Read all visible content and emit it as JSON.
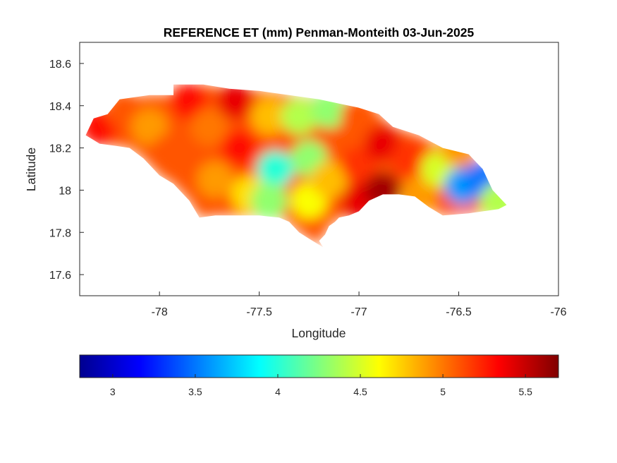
{
  "chart_data": {
    "type": "heatmap",
    "title": "REFERENCE ET (mm) Penman-Monteith 03-Jun-2025",
    "xlabel": "Longitude",
    "ylabel": "Latitude",
    "xlim": [
      -78.4,
      -76
    ],
    "ylim": [
      17.5,
      18.7
    ],
    "xticks": [
      -78,
      -77.5,
      -77,
      -76.5,
      -76
    ],
    "xtick_labels": [
      "-78",
      "-77.5",
      "-77",
      "-76.5",
      "-76"
    ],
    "yticks": [
      17.6,
      17.8,
      18,
      18.2,
      18.4,
      18.6
    ],
    "ytick_labels": [
      "17.6",
      "17.8",
      "18",
      "18.2",
      "18.4",
      "18.6"
    ],
    "grid": false,
    "colormap": "jet",
    "colorbar": {
      "orientation": "horizontal",
      "placement": "bottom",
      "range": [
        2.8,
        5.7
      ],
      "ticks": [
        3,
        3.5,
        4,
        4.5,
        5,
        5.5
      ],
      "tick_labels": [
        "3",
        "3.5",
        "4",
        "4.5",
        "5",
        "5.5"
      ]
    },
    "outline": [
      [
        -78.37,
        18.26
      ],
      [
        -78.33,
        18.34
      ],
      [
        -78.26,
        18.36
      ],
      [
        -78.2,
        18.43
      ],
      [
        -78.05,
        18.45
      ],
      [
        -77.93,
        18.45
      ],
      [
        -77.93,
        18.5
      ],
      [
        -77.78,
        18.5
      ],
      [
        -77.65,
        18.48
      ],
      [
        -77.5,
        18.47
      ],
      [
        -77.35,
        18.45
      ],
      [
        -77.2,
        18.43
      ],
      [
        -77.1,
        18.41
      ],
      [
        -77.0,
        18.39
      ],
      [
        -76.9,
        18.36
      ],
      [
        -76.83,
        18.3
      ],
      [
        -76.7,
        18.26
      ],
      [
        -76.58,
        18.2
      ],
      [
        -76.45,
        18.17
      ],
      [
        -76.38,
        18.1
      ],
      [
        -76.33,
        18.0
      ],
      [
        -76.26,
        17.93
      ],
      [
        -76.3,
        17.91
      ],
      [
        -76.45,
        17.89
      ],
      [
        -76.58,
        17.88
      ],
      [
        -76.65,
        17.92
      ],
      [
        -76.72,
        17.97
      ],
      [
        -76.8,
        17.98
      ],
      [
        -76.88,
        17.98
      ],
      [
        -76.95,
        17.95
      ],
      [
        -77.0,
        17.9
      ],
      [
        -77.05,
        17.88
      ],
      [
        -77.1,
        17.87
      ],
      [
        -77.12,
        17.85
      ],
      [
        -77.15,
        17.83
      ],
      [
        -77.17,
        17.79
      ],
      [
        -77.2,
        17.76
      ],
      [
        -77.18,
        17.73
      ],
      [
        -77.25,
        17.77
      ],
      [
        -77.3,
        17.8
      ],
      [
        -77.35,
        17.85
      ],
      [
        -77.4,
        17.87
      ],
      [
        -77.5,
        17.88
      ],
      [
        -77.6,
        17.88
      ],
      [
        -77.72,
        17.88
      ],
      [
        -77.8,
        17.87
      ],
      [
        -77.85,
        17.95
      ],
      [
        -77.93,
        18.03
      ],
      [
        -78.0,
        18.07
      ],
      [
        -78.08,
        18.15
      ],
      [
        -78.15,
        18.2
      ],
      [
        -78.22,
        18.21
      ],
      [
        -78.3,
        18.22
      ],
      [
        -78.37,
        18.26
      ]
    ],
    "field_points": [
      [
        -78.3,
        18.3,
        5.3
      ],
      [
        -78.18,
        18.38,
        5.1
      ],
      [
        -78.05,
        18.3,
        4.9
      ],
      [
        -77.95,
        18.18,
        5.1
      ],
      [
        -77.85,
        18.42,
        5.3
      ],
      [
        -77.75,
        18.3,
        5.0
      ],
      [
        -77.72,
        18.05,
        4.9
      ],
      [
        -77.62,
        18.42,
        5.4
      ],
      [
        -77.6,
        18.2,
        5.3
      ],
      [
        -77.55,
        17.98,
        4.7
      ],
      [
        -77.45,
        18.35,
        4.8
      ],
      [
        -77.42,
        18.1,
        4.0
      ],
      [
        -77.45,
        17.95,
        4.3
      ],
      [
        -77.3,
        18.35,
        4.4
      ],
      [
        -77.25,
        18.15,
        4.3
      ],
      [
        -77.25,
        17.95,
        4.6
      ],
      [
        -77.15,
        18.38,
        4.3
      ],
      [
        -77.15,
        18.05,
        4.8
      ],
      [
        -77.0,
        18.35,
        5.1
      ],
      [
        -77.0,
        18.12,
        5.2
      ],
      [
        -77.0,
        17.95,
        5.4
      ],
      [
        -76.88,
        18.22,
        5.4
      ],
      [
        -76.88,
        18.0,
        5.6
      ],
      [
        -76.75,
        18.15,
        5.2
      ],
      [
        -76.7,
        17.98,
        4.9
      ],
      [
        -76.6,
        18.1,
        4.5
      ],
      [
        -76.5,
        18.2,
        4.9
      ],
      [
        -76.48,
        18.02,
        3.6
      ],
      [
        -76.38,
        18.05,
        3.5
      ],
      [
        -76.3,
        17.95,
        4.4
      ]
    ]
  }
}
